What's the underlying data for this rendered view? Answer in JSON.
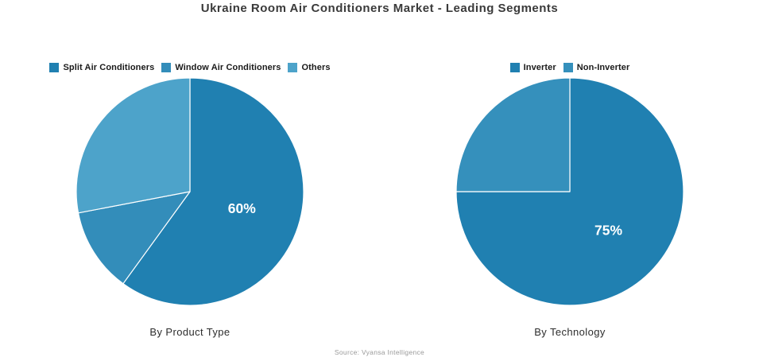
{
  "title": "Ukraine Room Air Conditioners Market - Leading Segments",
  "source": "Source: Vyansa Intelligence",
  "palette": {
    "primary_dark_blue": "#2080b1",
    "medium_blue": "#338dba",
    "light_blue": "#4da3ca",
    "non_inverter_blue": "#3590bc",
    "slice_separator": "#ffffff",
    "slice_label_color": "#ffffff"
  },
  "chart_data": [
    {
      "type": "pie",
      "title": "By Product Type",
      "categories": [
        "Split Air Conditioners",
        "Window Air Conditioners",
        "Others"
      ],
      "values": [
        60,
        12,
        28
      ],
      "slice_labels": [
        "60%",
        "",
        ""
      ],
      "colors": [
        "#2080b1",
        "#338dba",
        "#4da3ca"
      ],
      "start_angle_deg": 0,
      "direction": "clockwise",
      "legend_position": "top"
    },
    {
      "type": "pie",
      "title": "By Technology",
      "categories": [
        "Inverter",
        "Non-Inverter"
      ],
      "values": [
        75,
        25
      ],
      "slice_labels": [
        "75%",
        ""
      ],
      "colors": [
        "#2080b1",
        "#3590bc"
      ],
      "start_angle_deg": 0,
      "direction": "clockwise",
      "legend_position": "top"
    }
  ]
}
